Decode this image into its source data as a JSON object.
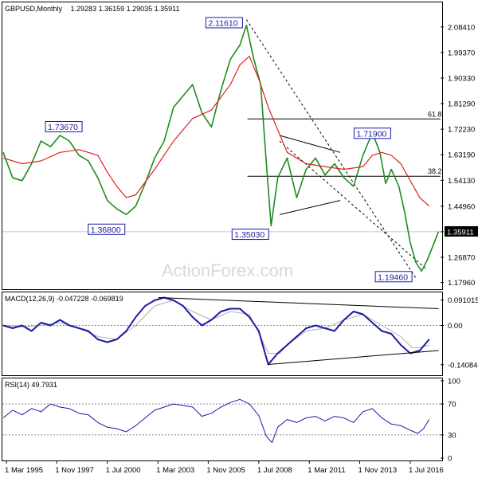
{
  "header": {
    "title": "GBPUSD,Monthly",
    "ohlc": "1.29283 1.36159 1.29035 1.35911"
  },
  "watermark": "ActionForex.com",
  "chart_data": {
    "type": "line",
    "price": {
      "title": "GBPUSD,Monthly",
      "y_ticks": [
        "2.08410",
        "1.99370",
        "1.90330",
        "1.81290",
        "1.72230",
        "1.63190",
        "1.54130",
        "1.44960",
        "1.35911",
        "1.26870",
        "1.17960"
      ],
      "ylim": [
        1.17,
        2.14
      ],
      "current_price": "1.35911",
      "annotations": [
        {
          "label": "2.11610",
          "x": 2007.85,
          "y": 2.1161
        },
        {
          "label": "1.73670",
          "x": 1998.2,
          "y": 1.7367
        },
        {
          "label": "1.36800",
          "x": 2001.3,
          "y": 1.368
        },
        {
          "label": "1.35030",
          "x": 2009.15,
          "y": 1.3503
        },
        {
          "label": "1.71900",
          "x": 2014.5,
          "y": 1.719
        },
        {
          "label": "1.19460",
          "x": 2016.8,
          "y": 1.1946
        }
      ],
      "fib_levels": [
        {
          "label": "61.8",
          "y": 1.7586,
          "from": 2007.9,
          "to": 2019.0
        },
        {
          "label": "38.2",
          "y": 1.5557,
          "from": 2007.9,
          "to": 2019.0
        }
      ],
      "series": [
        {
          "name": "close",
          "color": "#1d8c1d",
          "x": [
            1995.0,
            1995.5,
            1996.0,
            1996.5,
            1997.0,
            1997.5,
            1998.0,
            1998.5,
            1999.0,
            1999.5,
            2000.0,
            2000.5,
            2001.0,
            2001.5,
            2002.0,
            2002.5,
            2003.0,
            2003.5,
            2004.0,
            2004.5,
            2005.0,
            2005.5,
            2006.0,
            2006.5,
            2007.0,
            2007.5,
            2007.85,
            2008.2,
            2008.6,
            2008.9,
            2009.15,
            2009.5,
            2010.0,
            2010.5,
            2011.0,
            2011.5,
            2012.0,
            2012.5,
            2013.0,
            2013.5,
            2014.0,
            2014.5,
            2014.9,
            2015.2,
            2015.5,
            2015.9,
            2016.2,
            2016.5,
            2016.8,
            2017.1,
            2017.4,
            2017.7,
            2018.0
          ],
          "y": [
            1.64,
            1.55,
            1.54,
            1.6,
            1.68,
            1.66,
            1.7,
            1.68,
            1.63,
            1.61,
            1.55,
            1.47,
            1.44,
            1.42,
            1.45,
            1.53,
            1.62,
            1.68,
            1.8,
            1.84,
            1.88,
            1.78,
            1.73,
            1.86,
            1.97,
            2.02,
            2.09,
            1.98,
            1.88,
            1.6,
            1.38,
            1.55,
            1.62,
            1.48,
            1.58,
            1.62,
            1.56,
            1.6,
            1.55,
            1.52,
            1.63,
            1.71,
            1.64,
            1.53,
            1.58,
            1.52,
            1.43,
            1.32,
            1.25,
            1.22,
            1.26,
            1.31,
            1.36
          ]
        },
        {
          "name": "moving average",
          "color": "#e02020",
          "x": [
            1995.0,
            1996.0,
            1997.0,
            1998.0,
            1999.0,
            2000.0,
            2000.5,
            2001.0,
            2001.5,
            2002.0,
            2003.0,
            2004.0,
            2005.0,
            2006.0,
            2007.0,
            2007.5,
            2008.0,
            2008.5,
            2009.0,
            2009.5,
            2010.0,
            2011.0,
            2012.0,
            2013.0,
            2014.0,
            2014.5,
            2015.0,
            2015.5,
            2016.0,
            2016.5,
            2017.0,
            2017.5
          ],
          "y": [
            1.62,
            1.6,
            1.61,
            1.64,
            1.65,
            1.63,
            1.57,
            1.52,
            1.48,
            1.49,
            1.58,
            1.68,
            1.76,
            1.79,
            1.88,
            1.95,
            1.98,
            1.9,
            1.8,
            1.72,
            1.64,
            1.6,
            1.59,
            1.58,
            1.59,
            1.63,
            1.64,
            1.63,
            1.6,
            1.54,
            1.48,
            1.45
          ]
        }
      ]
    },
    "macd": {
      "title": "MACD(12,26,9) -0.047228 -0.069819",
      "y_ticks": [
        "0.091015",
        "0.00",
        "-0.140843"
      ],
      "ylim": [
        -0.17,
        0.11
      ],
      "series": [
        {
          "name": "MACD",
          "color": "#1a1aa6",
          "x": [
            1995.0,
            1995.5,
            1996.0,
            1996.5,
            1997.0,
            1997.5,
            1998.0,
            1998.5,
            1999.0,
            1999.5,
            2000.0,
            2000.5,
            2001.0,
            2001.5,
            2002.0,
            2002.5,
            2003.0,
            2003.5,
            2004.0,
            2004.5,
            2005.0,
            2005.5,
            2006.0,
            2006.5,
            2007.0,
            2007.5,
            2008.0,
            2008.5,
            2009.0,
            2009.5,
            2010.0,
            2010.5,
            2011.0,
            2011.5,
            2012.0,
            2012.5,
            2013.0,
            2013.5,
            2014.0,
            2014.5,
            2015.0,
            2015.5,
            2016.0,
            2016.5,
            2017.0,
            2017.5
          ],
          "y": [
            0.0,
            -0.01,
            0.0,
            -0.02,
            0.01,
            0.0,
            0.02,
            0.0,
            -0.01,
            -0.02,
            -0.05,
            -0.06,
            -0.05,
            -0.02,
            0.03,
            0.07,
            0.09,
            0.1,
            0.09,
            0.07,
            0.03,
            0.0,
            0.02,
            0.05,
            0.06,
            0.06,
            0.03,
            -0.02,
            -0.14,
            -0.1,
            -0.07,
            -0.04,
            -0.01,
            0.0,
            -0.01,
            -0.02,
            0.02,
            0.05,
            0.04,
            0.01,
            -0.02,
            -0.03,
            -0.07,
            -0.1,
            -0.09,
            -0.05
          ]
        },
        {
          "name": "Signal",
          "color": "#b0b0b0",
          "x": [
            1995.0,
            1996.0,
            1997.0,
            1998.0,
            1999.0,
            2000.0,
            2001.0,
            2002.0,
            2003.0,
            2004.0,
            2005.0,
            2006.0,
            2007.0,
            2008.0,
            2008.6,
            2009.0,
            2009.6,
            2010.0,
            2011.0,
            2012.0,
            2013.0,
            2014.0,
            2015.0,
            2016.0,
            2016.6,
            2017.0,
            2017.5
          ],
          "y": [
            0.0,
            -0.005,
            0.0,
            0.01,
            -0.01,
            -0.04,
            -0.05,
            0.0,
            0.07,
            0.09,
            0.05,
            0.02,
            0.05,
            0.04,
            -0.04,
            -0.1,
            -0.1,
            -0.07,
            -0.02,
            -0.01,
            0.02,
            0.04,
            0.0,
            -0.04,
            -0.08,
            -0.08,
            -0.07
          ]
        }
      ]
    },
    "rsi": {
      "title": "RSI(14) 49.7931",
      "y_ticks": [
        "100",
        "70",
        "30",
        "0"
      ],
      "ylim": [
        0,
        100
      ],
      "series": [
        {
          "name": "RSI",
          "color": "#1a1aa6",
          "x": [
            1995.0,
            1995.5,
            1996.0,
            1996.5,
            1997.0,
            1997.5,
            1998.0,
            1998.5,
            1999.0,
            1999.5,
            2000.0,
            2000.5,
            2001.0,
            2001.5,
            2002.0,
            2002.5,
            2003.0,
            2003.5,
            2004.0,
            2004.5,
            2005.0,
            2005.5,
            2006.0,
            2006.5,
            2007.0,
            2007.5,
            2008.0,
            2008.5,
            2008.9,
            2009.2,
            2009.5,
            2010.0,
            2010.5,
            2011.0,
            2011.5,
            2012.0,
            2012.5,
            2013.0,
            2013.5,
            2014.0,
            2014.5,
            2015.0,
            2015.5,
            2016.0,
            2016.5,
            2016.9,
            2017.2,
            2017.5
          ],
          "y": [
            52,
            62,
            56,
            64,
            60,
            70,
            66,
            64,
            58,
            56,
            46,
            40,
            38,
            34,
            42,
            52,
            62,
            66,
            70,
            68,
            66,
            54,
            58,
            66,
            72,
            76,
            70,
            55,
            28,
            20,
            40,
            50,
            46,
            52,
            54,
            48,
            54,
            52,
            46,
            60,
            64,
            52,
            44,
            42,
            36,
            32,
            38,
            50
          ]
        }
      ]
    },
    "x_ticks": [
      "1 Mar 1995",
      "1 Nov 1997",
      "1 Jul 2000",
      "1 Mar 2003",
      "1 Nov 2005",
      "1 Jul 2008",
      "1 Mar 2011",
      "1 Nov 2013",
      "1 Jul 2016"
    ],
    "xlim": [
      1995.0,
      2018.1
    ]
  }
}
